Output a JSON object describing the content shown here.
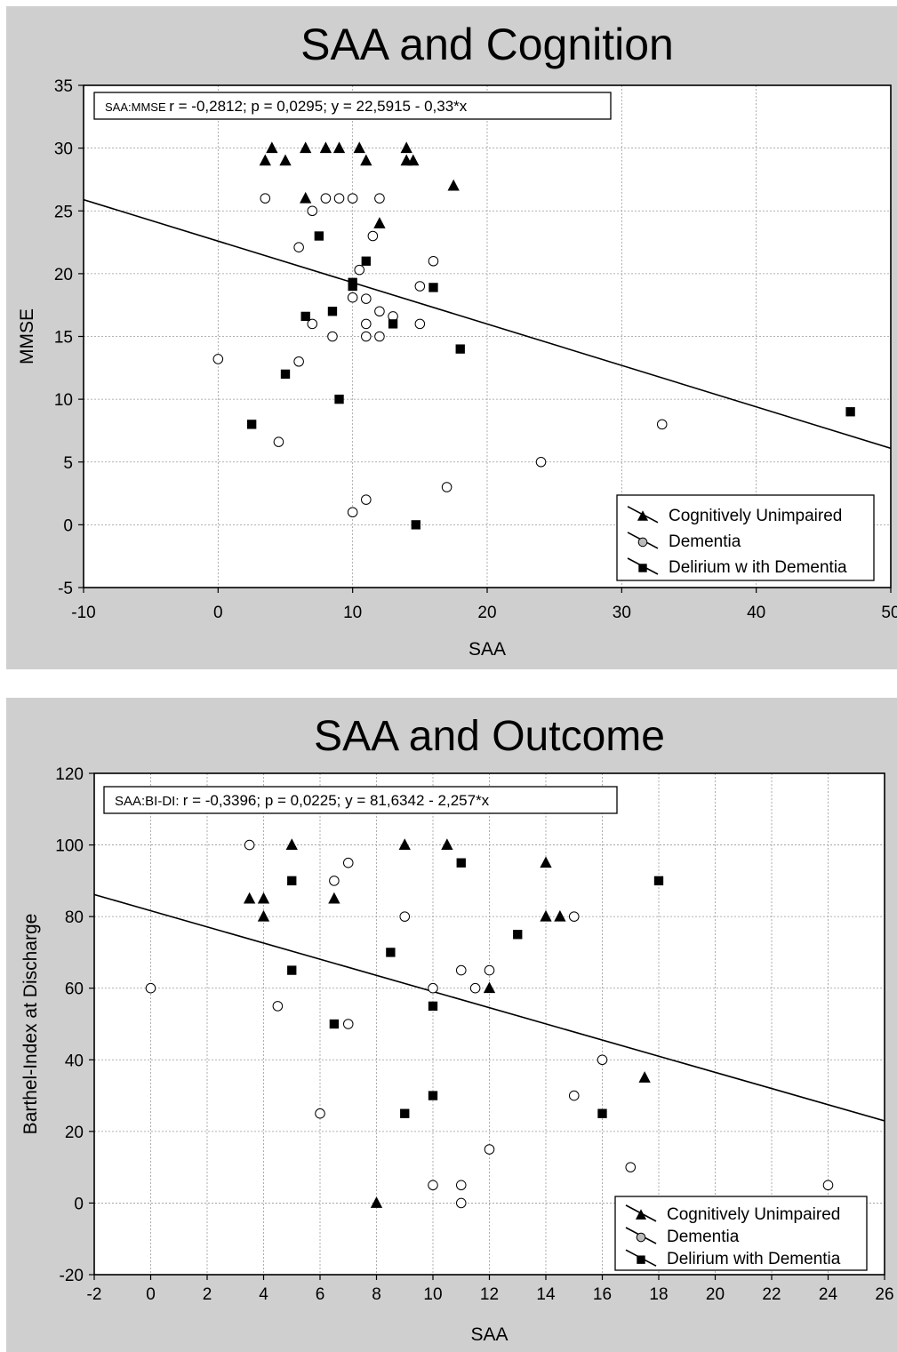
{
  "chart_data": [
    {
      "type": "scatter",
      "title": "SAA and Cognition",
      "xlabel": "SAA",
      "ylabel": "MMSE",
      "xlim": [
        -10,
        50
      ],
      "ylim": [
        -5,
        35
      ],
      "xticks": [
        "-10",
        "0",
        "10",
        "20",
        "30",
        "40",
        "50"
      ],
      "yticks": [
        "-5",
        "0",
        "5",
        "10",
        "15",
        "20",
        "25",
        "30",
        "35"
      ],
      "grid": true,
      "legend_position": "bottom-right",
      "stats_label": "SAA:MMSE",
      "stats_text": "r = -0,2812; p = 0,0295;  y = 22,5915 - 0,33*x",
      "regression": {
        "intercept": 22.5915,
        "slope": -0.33
      },
      "series": [
        {
          "name": "Cognitively Unimpaired",
          "marker": "triangle",
          "points": [
            [
              3.5,
              29
            ],
            [
              4,
              30
            ],
            [
              5,
              29
            ],
            [
              6.5,
              30
            ],
            [
              6.5,
              26
            ],
            [
              8,
              30
            ],
            [
              9,
              30
            ],
            [
              10.5,
              30
            ],
            [
              11,
              29
            ],
            [
              12,
              24
            ],
            [
              14,
              30
            ],
            [
              14,
              29
            ],
            [
              14.5,
              29
            ],
            [
              17.5,
              27
            ]
          ]
        },
        {
          "name": "Dementia",
          "marker": "circle",
          "points": [
            [
              0,
              13.2
            ],
            [
              3.5,
              26
            ],
            [
              4.5,
              6.6
            ],
            [
              6,
              22.1
            ],
            [
              6,
              13
            ],
            [
              7,
              25
            ],
            [
              7,
              16
            ],
            [
              8,
              26
            ],
            [
              8.5,
              15
            ],
            [
              9,
              26
            ],
            [
              10,
              26
            ],
            [
              10,
              18.1
            ],
            [
              10,
              1
            ],
            [
              10.5,
              20.3
            ],
            [
              11,
              18
            ],
            [
              11,
              16
            ],
            [
              11,
              15
            ],
            [
              11,
              2
            ],
            [
              11.5,
              23
            ],
            [
              12,
              26
            ],
            [
              12,
              17
            ],
            [
              12,
              15
            ],
            [
              13,
              16.6
            ],
            [
              15,
              19
            ],
            [
              15,
              16
            ],
            [
              16,
              21
            ],
            [
              17,
              3
            ],
            [
              24,
              5
            ],
            [
              33,
              8
            ]
          ]
        },
        {
          "name": "Delirium w ith Dementia",
          "marker": "square",
          "points": [
            [
              2.5,
              8
            ],
            [
              5,
              12
            ],
            [
              6.5,
              16.6
            ],
            [
              7.5,
              23
            ],
            [
              8.5,
              17
            ],
            [
              9,
              10
            ],
            [
              10,
              19.3
            ],
            [
              10,
              19
            ],
            [
              11,
              21
            ],
            [
              13,
              16
            ],
            [
              14.7,
              0
            ],
            [
              16,
              18.9
            ],
            [
              18,
              14
            ],
            [
              47,
              9
            ]
          ]
        }
      ]
    },
    {
      "type": "scatter",
      "title": "SAA and Outcome",
      "xlabel": "SAA",
      "ylabel": "Barthel-Index at Discharge",
      "xlim": [
        -2,
        26
      ],
      "ylim": [
        -20,
        120
      ],
      "xticks": [
        "-2",
        "0",
        "2",
        "4",
        "6",
        "8",
        "10",
        "12",
        "14",
        "16",
        "18",
        "20",
        "22",
        "24",
        "26"
      ],
      "yticks": [
        "-20",
        "0",
        "20",
        "40",
        "60",
        "80",
        "100",
        "120"
      ],
      "grid": true,
      "legend_position": "bottom-right",
      "stats_label": "SAA:BI-DI:",
      "stats_text": "r = -0,3396; p = 0,0225;  y = 81,6342 - 2,257*x",
      "regression": {
        "intercept": 81.6342,
        "slope": -2.257
      },
      "series": [
        {
          "name": "Cognitively Unimpaired",
          "marker": "triangle",
          "points": [
            [
              3.5,
              85
            ],
            [
              4,
              85
            ],
            [
              4,
              80
            ],
            [
              5,
              100
            ],
            [
              6.5,
              85
            ],
            [
              8,
              0
            ],
            [
              9,
              100
            ],
            [
              10.5,
              100
            ],
            [
              12,
              60
            ],
            [
              14,
              95
            ],
            [
              14,
              80
            ],
            [
              14.5,
              80
            ],
            [
              17.5,
              35
            ]
          ]
        },
        {
          "name": "Dementia",
          "marker": "circle",
          "points": [
            [
              0,
              60
            ],
            [
              3.5,
              100
            ],
            [
              4.5,
              55
            ],
            [
              6,
              25
            ],
            [
              6.5,
              90
            ],
            [
              7,
              95
            ],
            [
              7,
              50
            ],
            [
              9,
              80
            ],
            [
              10,
              60
            ],
            [
              10,
              5
            ],
            [
              11,
              65
            ],
            [
              11,
              5
            ],
            [
              11,
              0
            ],
            [
              11.5,
              60
            ],
            [
              12,
              65
            ],
            [
              12,
              15
            ],
            [
              15,
              80
            ],
            [
              15,
              30
            ],
            [
              16,
              40
            ],
            [
              17,
              10
            ],
            [
              24,
              5
            ]
          ]
        },
        {
          "name": "Delirium with Dementia",
          "marker": "square",
          "points": [
            [
              5,
              90
            ],
            [
              5,
              65
            ],
            [
              6.5,
              50
            ],
            [
              8.5,
              70
            ],
            [
              9,
              25
            ],
            [
              10,
              55
            ],
            [
              10,
              30
            ],
            [
              11,
              95
            ],
            [
              13,
              75
            ],
            [
              16,
              25
            ],
            [
              18,
              90
            ]
          ]
        }
      ]
    }
  ]
}
